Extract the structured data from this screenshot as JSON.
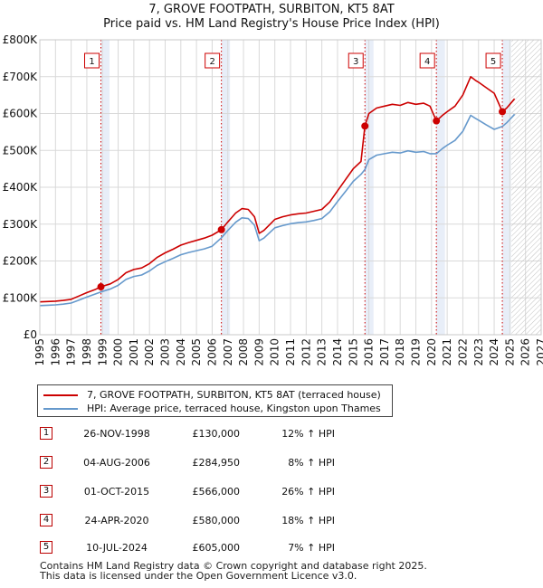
{
  "title_line1": "7, GROVE FOOTPATH, SURBITON, KT5 8AT",
  "title_line2": "Price paid vs. HM Land Registry's House Price Index (HPI)",
  "colors": {
    "property": "#cc0000",
    "hpi": "#6699cc",
    "grid": "#d9d9d9",
    "shade": "#e8eef8",
    "marker": "#cc0000"
  },
  "chart_data": {
    "type": "line",
    "x_axis": {
      "min": 1995,
      "max": 2027,
      "ticks": [
        "1995",
        "1996",
        "1997",
        "1998",
        "1999",
        "2000",
        "2001",
        "2002",
        "2003",
        "2004",
        "2005",
        "2006",
        "2007",
        "2008",
        "2009",
        "2010",
        "2011",
        "2012",
        "2013",
        "2014",
        "2015",
        "2016",
        "2017",
        "2018",
        "2019",
        "2020",
        "2021",
        "2022",
        "2023",
        "2024",
        "2025",
        "2026",
        "2027"
      ]
    },
    "y_axis": {
      "min": 0,
      "max": 800000,
      "ticks": [
        {
          "value": 0,
          "label": "£0"
        },
        {
          "value": 100000,
          "label": "£100K"
        },
        {
          "value": 200000,
          "label": "£200K"
        },
        {
          "value": 300000,
          "label": "£300K"
        },
        {
          "value": 400000,
          "label": "£400K"
        },
        {
          "value": 500000,
          "label": "£500K"
        },
        {
          "value": 600000,
          "label": "£600K"
        },
        {
          "value": 700000,
          "label": "£700K"
        },
        {
          "value": 800000,
          "label": "£800K"
        }
      ]
    },
    "grid": true,
    "future_hatch_from": 2025.1,
    "series": [
      {
        "name": "7, GROVE FOOTPATH, SURBITON, KT5 8AT (terraced house)",
        "color": "#cc0000",
        "points": [
          [
            1995.0,
            89000
          ],
          [
            1995.5,
            90000
          ],
          [
            1996.0,
            91000
          ],
          [
            1996.5,
            93000
          ],
          [
            1997.0,
            96000
          ],
          [
            1997.5,
            105000
          ],
          [
            1998.0,
            114000
          ],
          [
            1998.5,
            122000
          ],
          [
            1998.9,
            130000
          ],
          [
            1999.5,
            138000
          ],
          [
            2000.0,
            150000
          ],
          [
            2000.5,
            168000
          ],
          [
            2001.0,
            177000
          ],
          [
            2001.5,
            181000
          ],
          [
            2002.0,
            193000
          ],
          [
            2002.5,
            210000
          ],
          [
            2003.0,
            222000
          ],
          [
            2003.5,
            232000
          ],
          [
            2004.0,
            243000
          ],
          [
            2004.5,
            250000
          ],
          [
            2005.0,
            256000
          ],
          [
            2005.5,
            262000
          ],
          [
            2006.0,
            270000
          ],
          [
            2006.59,
            284950
          ],
          [
            2007.0,
            306000
          ],
          [
            2007.5,
            330000
          ],
          [
            2007.9,
            342000
          ],
          [
            2008.3,
            340000
          ],
          [
            2008.7,
            320000
          ],
          [
            2009.0,
            275000
          ],
          [
            2009.3,
            283000
          ],
          [
            2009.7,
            300000
          ],
          [
            2010.0,
            313000
          ],
          [
            2010.5,
            320000
          ],
          [
            2011.0,
            325000
          ],
          [
            2011.5,
            328000
          ],
          [
            2012.0,
            330000
          ],
          [
            2012.5,
            335000
          ],
          [
            2013.0,
            340000
          ],
          [
            2013.5,
            360000
          ],
          [
            2014.0,
            390000
          ],
          [
            2014.5,
            420000
          ],
          [
            2015.0,
            450000
          ],
          [
            2015.5,
            470000
          ],
          [
            2015.75,
            566000
          ],
          [
            2016.0,
            600000
          ],
          [
            2016.5,
            615000
          ],
          [
            2017.0,
            620000
          ],
          [
            2017.5,
            625000
          ],
          [
            2018.0,
            622000
          ],
          [
            2018.5,
            630000
          ],
          [
            2019.0,
            625000
          ],
          [
            2019.5,
            628000
          ],
          [
            2019.9,
            620000
          ],
          [
            2020.31,
            580000
          ],
          [
            2020.7,
            595000
          ],
          [
            2021.0,
            605000
          ],
          [
            2021.5,
            620000
          ],
          [
            2022.0,
            650000
          ],
          [
            2022.5,
            700000
          ],
          [
            2022.8,
            690000
          ],
          [
            2023.0,
            685000
          ],
          [
            2023.5,
            670000
          ],
          [
            2024.0,
            655000
          ],
          [
            2024.52,
            605000
          ],
          [
            2024.8,
            615000
          ],
          [
            2025.0,
            625000
          ],
          [
            2025.3,
            640000
          ]
        ]
      },
      {
        "name": "HPI: Average price, terraced house, Kingston upon Thames",
        "color": "#6699cc",
        "points": [
          [
            1995.0,
            79000
          ],
          [
            1995.5,
            80000
          ],
          [
            1996.0,
            81000
          ],
          [
            1996.5,
            83000
          ],
          [
            1997.0,
            86000
          ],
          [
            1997.5,
            94000
          ],
          [
            1998.0,
            102000
          ],
          [
            1998.5,
            110000
          ],
          [
            1998.9,
            116000
          ],
          [
            1999.5,
            124000
          ],
          [
            2000.0,
            134000
          ],
          [
            2000.5,
            150000
          ],
          [
            2001.0,
            158000
          ],
          [
            2001.5,
            162000
          ],
          [
            2002.0,
            173000
          ],
          [
            2002.5,
            188000
          ],
          [
            2003.0,
            198000
          ],
          [
            2003.5,
            207000
          ],
          [
            2004.0,
            217000
          ],
          [
            2004.5,
            223000
          ],
          [
            2005.0,
            228000
          ],
          [
            2005.5,
            233000
          ],
          [
            2006.0,
            240000
          ],
          [
            2006.59,
            263000
          ],
          [
            2007.0,
            283000
          ],
          [
            2007.5,
            305000
          ],
          [
            2007.9,
            317000
          ],
          [
            2008.3,
            315000
          ],
          [
            2008.7,
            297000
          ],
          [
            2009.0,
            255000
          ],
          [
            2009.3,
            262000
          ],
          [
            2009.7,
            278000
          ],
          [
            2010.0,
            290000
          ],
          [
            2010.5,
            296000
          ],
          [
            2011.0,
            301000
          ],
          [
            2011.5,
            304000
          ],
          [
            2012.0,
            306000
          ],
          [
            2012.5,
            310000
          ],
          [
            2013.0,
            315000
          ],
          [
            2013.5,
            333000
          ],
          [
            2014.0,
            361000
          ],
          [
            2014.5,
            388000
          ],
          [
            2015.0,
            416000
          ],
          [
            2015.5,
            435000
          ],
          [
            2015.75,
            448000
          ],
          [
            2016.0,
            475000
          ],
          [
            2016.5,
            487000
          ],
          [
            2017.0,
            491000
          ],
          [
            2017.5,
            495000
          ],
          [
            2018.0,
            493000
          ],
          [
            2018.5,
            499000
          ],
          [
            2019.0,
            495000
          ],
          [
            2019.5,
            497000
          ],
          [
            2019.9,
            491000
          ],
          [
            2020.31,
            491000
          ],
          [
            2020.7,
            505000
          ],
          [
            2021.0,
            514000
          ],
          [
            2021.5,
            527000
          ],
          [
            2022.0,
            552000
          ],
          [
            2022.5,
            595000
          ],
          [
            2022.8,
            587000
          ],
          [
            2023.0,
            582000
          ],
          [
            2023.5,
            569000
          ],
          [
            2024.0,
            557000
          ],
          [
            2024.52,
            565000
          ],
          [
            2024.8,
            575000
          ],
          [
            2025.0,
            584000
          ],
          [
            2025.3,
            598000
          ]
        ]
      }
    ],
    "sales": [
      {
        "n": "1",
        "x": 1998.9,
        "y": 130000
      },
      {
        "n": "2",
        "x": 2006.59,
        "y": 284950
      },
      {
        "n": "3",
        "x": 2015.75,
        "y": 566000
      },
      {
        "n": "4",
        "x": 2020.31,
        "y": 580000
      },
      {
        "n": "5",
        "x": 2024.52,
        "y": 605000
      }
    ]
  },
  "legend": {
    "property": "7, GROVE FOOTPATH, SURBITON, KT5 8AT (terraced house)",
    "hpi": "HPI: Average price, terraced house, Kingston upon Thames"
  },
  "table": [
    {
      "n": "1",
      "date": "26-NOV-1998",
      "price": "£130,000",
      "hpi": "12% ↑ HPI"
    },
    {
      "n": "2",
      "date": "04-AUG-2006",
      "price": "£284,950",
      "hpi": "8% ↑ HPI"
    },
    {
      "n": "3",
      "date": "01-OCT-2015",
      "price": "£566,000",
      "hpi": "26% ↑ HPI"
    },
    {
      "n": "4",
      "date": "24-APR-2020",
      "price": "£580,000",
      "hpi": "18% ↑ HPI"
    },
    {
      "n": "5",
      "date": "10-JUL-2024",
      "price": "£605,000",
      "hpi": "7% ↑ HPI"
    }
  ],
  "footer_line1": "Contains HM Land Registry data © Crown copyright and database right 2025.",
  "footer_line2": "This data is licensed under the Open Government Licence v3.0."
}
